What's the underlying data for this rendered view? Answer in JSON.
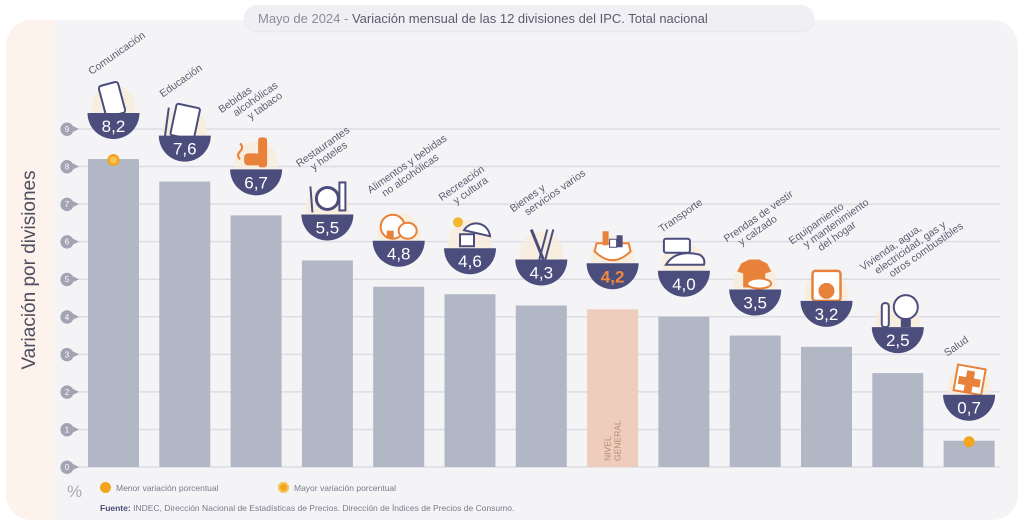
{
  "title": {
    "prefix": "Mayo de 2024",
    "separator": " - ",
    "main": "Variación mensual de las 12 divisiones del IPC. Total nacional"
  },
  "unit_label": "%",
  "legend": [
    {
      "label": "Menor variación porcentual",
      "marker": "filled-dot",
      "color": "#f2a51f"
    },
    {
      "label": "Mayor variación porcentual",
      "marker": "ringed-dot",
      "color": "#f2a51f"
    }
  ],
  "source": {
    "label": "Fuente:",
    "text": " INDEC, Dirección Nacional de Estadísticas de Precios. Dirección de Índices de Precios de Consumo."
  },
  "colors": {
    "bar": "#b1b7c5",
    "bar_general": "#efcdbd",
    "badge": "#4b4d7c",
    "badge_text": "#ffffff",
    "badge_text_general": "#ef8a3c",
    "icon_orange": "#e8823a",
    "icon_navy": "#4b4d7c",
    "marker": "#f2a51f",
    "grid": "#dcdce4"
  },
  "chart_data": {
    "type": "bar",
    "title": "Mayo de 2024 - Variación mensual de las 12 divisiones del IPC. Total nacional",
    "xlabel": "",
    "ylabel": "Variación por divisiones",
    "yunit": "%",
    "ylim": [
      0,
      9
    ],
    "yticks": [
      "0",
      "1",
      "2",
      "3",
      "4",
      "5",
      "6",
      "7",
      "8",
      "9"
    ],
    "grid": true,
    "legend_position": "bottom-left",
    "categories": [
      {
        "name": "Comunicación",
        "label_lines": [
          "Comunicación"
        ],
        "icon": "smartphone-icon",
        "value": 8.2,
        "value_label": "8,2",
        "marker": "mayor"
      },
      {
        "name": "Educación",
        "label_lines": [
          "Educación"
        ],
        "icon": "notebook-icon",
        "value": 7.6,
        "value_label": "7,6"
      },
      {
        "name": "Bebidas alcohólicas y tabaco",
        "label_lines": [
          "Bebidas",
          "alcohólicas",
          "y tabaco"
        ],
        "icon": "bottles-icon",
        "value": 6.7,
        "value_label": "6,7"
      },
      {
        "name": "Restaurantes y hoteles",
        "label_lines": [
          "Restaurantes",
          "y hoteles"
        ],
        "icon": "plate-cutlery-icon",
        "value": 5.5,
        "value_label": "5,5"
      },
      {
        "name": "Alimentos y bebidas no alcohólicas",
        "label_lines": [
          "Alimentos y bebidas",
          "no alcohólicas"
        ],
        "icon": "chicken-food-icon",
        "value": 4.8,
        "value_label": "4,8"
      },
      {
        "name": "Recreación y cultura",
        "label_lines": [
          "Recreación",
          "y cultura"
        ],
        "icon": "beach-umbrella-icon",
        "value": 4.6,
        "value_label": "4,6"
      },
      {
        "name": "Bienes y servicios varios",
        "label_lines": [
          "Bienes y",
          "servicios varios"
        ],
        "icon": "scissors-comb-icon",
        "value": 4.3,
        "value_label": "4,3"
      },
      {
        "name": "Nivel general",
        "label_lines": [
          "NIVEL",
          "GENERAL"
        ],
        "icon": "shopping-bag-icon",
        "value": 4.2,
        "value_label": "4,2",
        "general": true
      },
      {
        "name": "Transporte",
        "label_lines": [
          "Transporte"
        ],
        "icon": "car-sube-card-icon",
        "value": 4.0,
        "value_label": "4,0",
        "card_text": "SUBE"
      },
      {
        "name": "Prendas de vestir y calzado",
        "label_lines": [
          "Prendas de vestir",
          "y calzado"
        ],
        "icon": "shirt-shoe-icon",
        "value": 3.5,
        "value_label": "3,5"
      },
      {
        "name": "Equipamiento y mantenimiento del hogar",
        "label_lines": [
          "Equipamiento",
          "y mantenimiento",
          "del hogar"
        ],
        "icon": "washing-machine-icon",
        "value": 3.2,
        "value_label": "3,2"
      },
      {
        "name": "Vivienda, agua, electricidad, gas y otros combustibles",
        "label_lines": [
          "Vivienda, agua,",
          "electricidad, gas y",
          "otros combustibles"
        ],
        "icon": "lightbulb-plug-icon",
        "value": 2.5,
        "value_label": "2,5"
      },
      {
        "name": "Salud",
        "label_lines": [
          "Salud"
        ],
        "icon": "first-aid-kit-icon",
        "value": 0.7,
        "value_label": "0,7",
        "marker": "menor"
      }
    ]
  }
}
